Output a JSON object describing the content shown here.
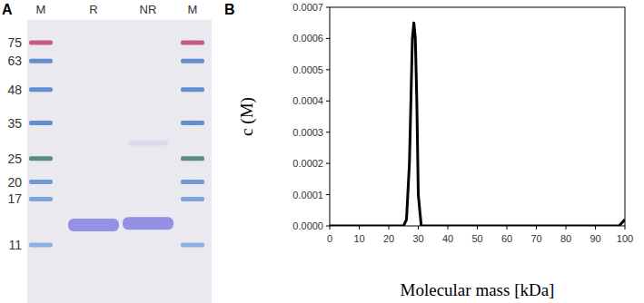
{
  "gel": {
    "letter": "A",
    "marker_kda": [
      75,
      63,
      48,
      35,
      25,
      20,
      17,
      11
    ],
    "marker_colors": [
      "#c0407a",
      "#4a7fc8",
      "#4a7fc8",
      "#4a7fc8",
      "#3f7a6e",
      "#5a8ad0",
      "#6a98d8",
      "#7aa6e0"
    ],
    "lanes": [
      {
        "label": "M",
        "ladder": true
      },
      {
        "label": "R",
        "bands": [
          13.3
        ],
        "color": "#8a86e4"
      },
      {
        "label": "NR",
        "bands": [
          13.5
        ],
        "faint_bands": [
          29
        ],
        "color": "#8a86e4"
      },
      {
        "label": "M",
        "ladder": true
      }
    ]
  },
  "chart_data": {
    "type": "line",
    "letter": "B",
    "x_label": "Molecular mass [kDa]",
    "y_label": "c (M)",
    "x": [
      0,
      25,
      26,
      27,
      27.5,
      28,
      28.5,
      29,
      29.5,
      30,
      31,
      98,
      99,
      100
    ],
    "values": [
      0,
      0,
      2e-05,
      0.0002,
      0.0004,
      0.0006,
      0.00065,
      0.0006,
      0.0004,
      0.0001,
      0,
      0,
      1e-05,
      2e-05
    ],
    "color": "#000000",
    "xlim": [
      0,
      100
    ],
    "xticks": [
      0,
      10,
      20,
      30,
      40,
      50,
      60,
      70,
      80,
      90,
      100
    ],
    "ylim": [
      0,
      0.0007
    ],
    "yticks": [
      {
        "value": 0,
        "label": "0.0000"
      },
      0.0001,
      0.0002,
      0.0003,
      0.0004,
      0.0005,
      0.0006,
      0.0007
    ],
    "grid": false
  }
}
